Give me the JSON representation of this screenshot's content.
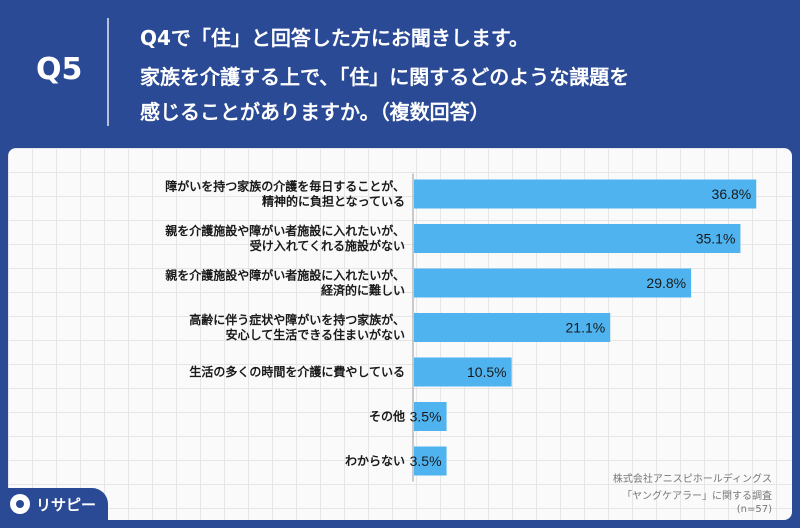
{
  "header": {
    "question_number": "Q5",
    "lines": [
      "Q4で「住」と回答した方にお聞きします。",
      "家族を介護する上で、「住」に関するどのような課題を",
      "感じることがありますか。（複数回答）"
    ]
  },
  "chart_data": {
    "type": "bar",
    "orientation": "horizontal",
    "unit": "%",
    "xlim": [
      0,
      40
    ],
    "bar_color": "#4fb3f0",
    "categories": [
      [
        "障がいを持つ家族の介護を毎日することが、",
        "精神的に負担となっている"
      ],
      [
        "親を介護施設や障がい者施設に入れたいが、",
        "受け入れてくれる施設がない"
      ],
      [
        "親を介護施設や障がい者施設に入れたいが、",
        "経済的に難しい"
      ],
      [
        "高齢に伴う症状や障がいを持つ家族が、",
        "安心して生活できる住まいがない"
      ],
      [
        "生活の多くの時間を介護に費やしている"
      ],
      [
        "その他"
      ],
      [
        "わからない"
      ]
    ],
    "values": [
      36.8,
      35.1,
      29.8,
      21.1,
      10.5,
      3.5,
      3.5
    ],
    "value_labels": [
      "36.8%",
      "35.1%",
      "29.8%",
      "21.1%",
      "10.5%",
      "3.5%",
      "3.5%"
    ]
  },
  "footer": {
    "source_lines": [
      "株式会社アニスピホールディングス",
      "「ヤングケアラー」に関する調査",
      "(n=57)"
    ],
    "logo_text": "リサピー"
  }
}
